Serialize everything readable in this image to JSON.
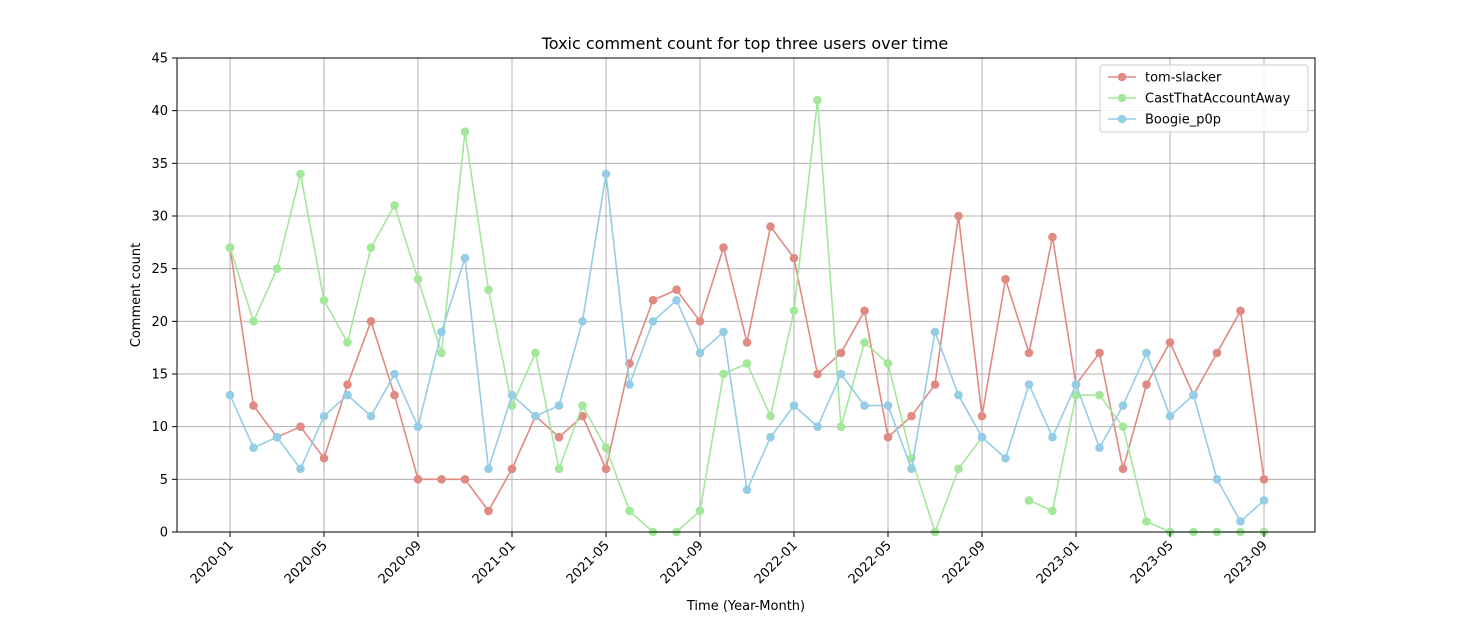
{
  "chart_data": {
    "type": "line",
    "title": "Toxic comment count for top three users over time",
    "xlabel": "Time (Year-Month)",
    "ylabel": "Comment count",
    "ylim": [
      0,
      45
    ],
    "yticks": [
      0,
      5,
      10,
      15,
      20,
      25,
      30,
      35,
      40,
      45
    ],
    "xtick_labels": [
      "2020-01",
      "2020-05",
      "2020-09",
      "2021-01",
      "2021-05",
      "2021-09",
      "2022-01",
      "2022-05",
      "2022-09",
      "2023-01",
      "2023-05",
      "2023-09"
    ],
    "xtick_every": 4,
    "grid": true,
    "legend_position": "top-right",
    "x": [
      "2020-01",
      "2020-02",
      "2020-03",
      "2020-04",
      "2020-05",
      "2020-06",
      "2020-07",
      "2020-08",
      "2020-09",
      "2020-10",
      "2020-11",
      "2020-12",
      "2021-01",
      "2021-02",
      "2021-03",
      "2021-04",
      "2021-05",
      "2021-06",
      "2021-07",
      "2021-08",
      "2021-09",
      "2021-10",
      "2021-11",
      "2021-12",
      "2022-01",
      "2022-02",
      "2022-03",
      "2022-04",
      "2022-05",
      "2022-06",
      "2022-07",
      "2022-08",
      "2022-09",
      "2022-10",
      "2022-11",
      "2022-12",
      "2023-01",
      "2023-02",
      "2023-03",
      "2023-04",
      "2023-05",
      "2023-06",
      "2023-07",
      "2023-08",
      "2023-09"
    ],
    "series": [
      {
        "name": "tom-slacker",
        "color": "#e08a83",
        "values": [
          27,
          12,
          9,
          10,
          7,
          14,
          20,
          13,
          5,
          5,
          5,
          2,
          6,
          11,
          9,
          11,
          6,
          16,
          22,
          23,
          20,
          27,
          18,
          29,
          26,
          15,
          17,
          21,
          9,
          11,
          14,
          30,
          11,
          24,
          17,
          28,
          14,
          17,
          6,
          14,
          18,
          13,
          17,
          21,
          5
        ]
      },
      {
        "name": "CastThatAccountAway",
        "color": "#a3e89a",
        "values": [
          27,
          20,
          25,
          34,
          22,
          18,
          27,
          31,
          24,
          17,
          38,
          23,
          12,
          17,
          6,
          12,
          8,
          2,
          0,
          0,
          2,
          15,
          16,
          11,
          21,
          41,
          10,
          18,
          16,
          7,
          0,
          6,
          9,
          null,
          3,
          2,
          13,
          13,
          10,
          1,
          0,
          0,
          0,
          0,
          0
        ]
      },
      {
        "name": "Boogie_p0p",
        "color": "#95cde6",
        "values": [
          13,
          8,
          9,
          6,
          11,
          13,
          11,
          15,
          10,
          19,
          26,
          6,
          13,
          11,
          12,
          20,
          34,
          14,
          20,
          22,
          17,
          19,
          4,
          9,
          12,
          10,
          15,
          12,
          12,
          6,
          19,
          13,
          9,
          7,
          14,
          9,
          14,
          8,
          12,
          17,
          11,
          13,
          5,
          1,
          3
        ]
      }
    ]
  }
}
